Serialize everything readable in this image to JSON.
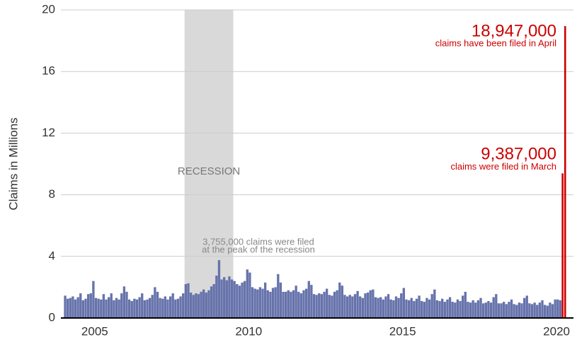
{
  "chart_data": {
    "type": "bar",
    "y_label": "Claims in Millions",
    "xlim": [
      2003.9,
      2020.55
    ],
    "xticks": [
      2005,
      2010,
      2015,
      2020
    ],
    "ylim": [
      0,
      20
    ],
    "yticks": [
      0,
      4,
      8,
      12,
      16,
      20
    ],
    "grid": true,
    "shaded_regions": [
      {
        "label": "RECESSION",
        "xlim": [
          2007.917,
          2009.5
        ],
        "color": "#d9d9d9"
      }
    ],
    "peak_note": [
      "3,755,000 claims were filed",
      "at the peak of the recession"
    ],
    "series": [
      {
        "color": "#6673ab",
        "x": [
          2004,
          2004.083,
          2004.167,
          2004.25,
          2004.333,
          2004.417,
          2004.5,
          2004.583,
          2004.667,
          2004.75,
          2004.833,
          2004.917,
          2005,
          2005.083,
          2005.167,
          2005.25,
          2005.333,
          2005.417,
          2005.5,
          2005.583,
          2005.667,
          2005.75,
          2005.833,
          2005.917,
          2006,
          2006.083,
          2006.167,
          2006.25,
          2006.333,
          2006.417,
          2006.5,
          2006.583,
          2006.667,
          2006.75,
          2006.833,
          2006.917,
          2007,
          2007.083,
          2007.167,
          2007.25,
          2007.333,
          2007.417,
          2007.5,
          2007.583,
          2007.667,
          2007.75,
          2007.833,
          2007.917,
          2008,
          2008.083,
          2008.167,
          2008.25,
          2008.333,
          2008.417,
          2008.5,
          2008.583,
          2008.667,
          2008.75,
          2008.833,
          2008.917,
          2009,
          2009.083,
          2009.167,
          2009.25,
          2009.333,
          2009.417,
          2009.5,
          2009.583,
          2009.667,
          2009.75,
          2009.833,
          2009.917,
          2010,
          2010.083,
          2010.167,
          2010.25,
          2010.333,
          2010.417,
          2010.5,
          2010.583,
          2010.667,
          2010.75,
          2010.833,
          2010.917,
          2011,
          2011.083,
          2011.167,
          2011.25,
          2011.333,
          2011.417,
          2011.5,
          2011.583,
          2011.667,
          2011.75,
          2011.833,
          2011.917,
          2012,
          2012.083,
          2012.167,
          2012.25,
          2012.333,
          2012.417,
          2012.5,
          2012.583,
          2012.667,
          2012.75,
          2012.833,
          2012.917,
          2013,
          2013.083,
          2013.167,
          2013.25,
          2013.333,
          2013.417,
          2013.5,
          2013.583,
          2013.667,
          2013.75,
          2013.833,
          2013.917,
          2014,
          2014.083,
          2014.167,
          2014.25,
          2014.333,
          2014.417,
          2014.5,
          2014.583,
          2014.667,
          2014.75,
          2014.833,
          2014.917,
          2015,
          2015.083,
          2015.167,
          2015.25,
          2015.333,
          2015.417,
          2015.5,
          2015.583,
          2015.667,
          2015.75,
          2015.833,
          2015.917,
          2016,
          2016.083,
          2016.167,
          2016.25,
          2016.333,
          2016.417,
          2016.5,
          2016.583,
          2016.667,
          2016.75,
          2016.833,
          2016.917,
          2017,
          2017.083,
          2017.167,
          2017.25,
          2017.333,
          2017.417,
          2017.5,
          2017.583,
          2017.667,
          2017.75,
          2017.833,
          2017.917,
          2018,
          2018.083,
          2018.167,
          2018.25,
          2018.333,
          2018.417,
          2018.5,
          2018.583,
          2018.667,
          2018.75,
          2018.833,
          2018.917,
          2019,
          2019.083,
          2019.167,
          2019.25,
          2019.333,
          2019.417,
          2019.5,
          2019.583,
          2019.667,
          2019.75,
          2019.833,
          2019.917,
          2020,
          2020.083
        ],
        "values": [
          1.45,
          1.25,
          1.3,
          1.4,
          1.2,
          1.35,
          1.6,
          1.15,
          1.25,
          1.55,
          1.6,
          2.4,
          1.3,
          1.25,
          1.2,
          1.55,
          1.2,
          1.35,
          1.6,
          1.15,
          1.3,
          1.2,
          1.6,
          2.05,
          1.7,
          1.2,
          1.1,
          1.25,
          1.2,
          1.35,
          1.6,
          1.15,
          1.2,
          1.3,
          1.5,
          2.0,
          1.7,
          1.3,
          1.25,
          1.4,
          1.2,
          1.4,
          1.6,
          1.2,
          1.25,
          1.4,
          1.6,
          2.2,
          2.25,
          1.65,
          1.5,
          1.6,
          1.55,
          1.7,
          1.85,
          1.65,
          1.8,
          2.05,
          2.2,
          2.75,
          3.755,
          2.5,
          2.65,
          2.45,
          2.7,
          2.5,
          2.4,
          2.2,
          2.1,
          2.3,
          2.4,
          3.15,
          2.95,
          2.0,
          1.9,
          1.85,
          2.0,
          1.9,
          2.3,
          1.8,
          1.7,
          1.95,
          2.0,
          2.85,
          2.3,
          1.7,
          1.7,
          1.8,
          1.7,
          1.8,
          2.1,
          1.7,
          1.6,
          1.8,
          1.9,
          2.4,
          2.15,
          1.55,
          1.5,
          1.6,
          1.55,
          1.7,
          1.9,
          1.5,
          1.45,
          1.7,
          1.8,
          2.3,
          2.1,
          1.5,
          1.4,
          1.5,
          1.4,
          1.55,
          1.75,
          1.4,
          1.3,
          1.6,
          1.65,
          1.8,
          1.85,
          1.35,
          1.3,
          1.35,
          1.2,
          1.4,
          1.55,
          1.2,
          1.15,
          1.4,
          1.3,
          1.6,
          1.95,
          1.2,
          1.15,
          1.3,
          1.1,
          1.25,
          1.45,
          1.1,
          1.05,
          1.3,
          1.2,
          1.55,
          1.85,
          1.15,
          1.1,
          1.25,
          1.05,
          1.2,
          1.35,
          1.05,
          1.0,
          1.2,
          1.1,
          1.45,
          1.7,
          1.05,
          1.0,
          1.15,
          1.0,
          1.15,
          1.3,
          0.95,
          1.0,
          1.1,
          1.0,
          1.35,
          1.55,
          0.95,
          0.95,
          1.05,
          0.9,
          1.05,
          1.2,
          0.9,
          0.85,
          1.0,
          0.95,
          1.3,
          1.45,
          0.95,
          0.9,
          1.0,
          0.85,
          1.0,
          1.15,
          0.85,
          0.8,
          1.0,
          0.9,
          1.2,
          1.2,
          1.15
        ]
      },
      {
        "color": "#cc0000",
        "x": [
          2020.167,
          2020.25
        ],
        "values": [
          9.387,
          18.947
        ],
        "value_labels": [
          "9,387,000",
          "18,947,000"
        ],
        "notes": [
          "claims were filed in March",
          "claims have been filed in April"
        ]
      }
    ]
  }
}
